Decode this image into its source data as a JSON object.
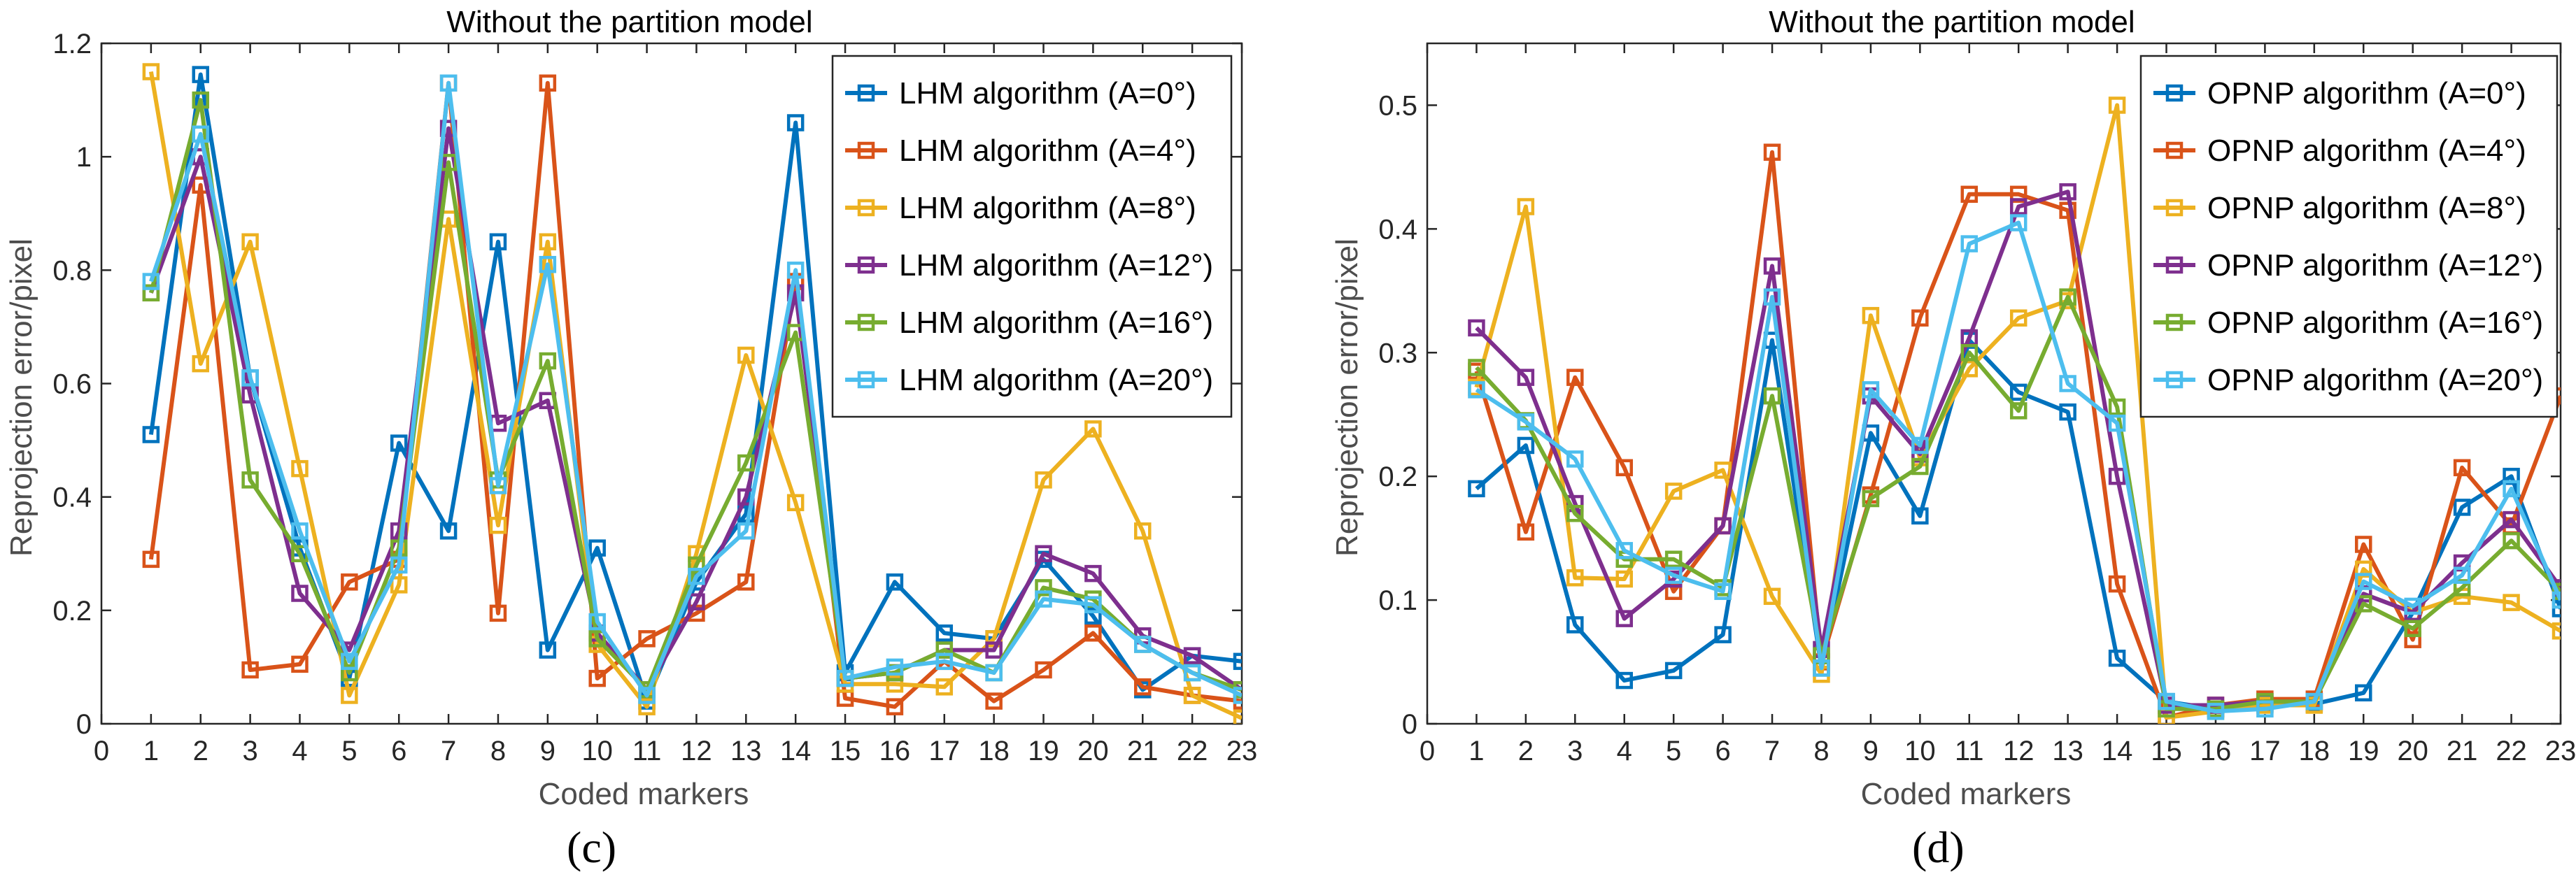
{
  "chart_data": [
    {
      "type": "line",
      "panel_label": "(c)",
      "title": "Without the partition model",
      "xlabel": "Coded markers",
      "ylabel": "Reprojection error/pixel",
      "xlim": [
        0,
        23
      ],
      "ylim": [
        0,
        1.2
      ],
      "xticks": [
        "0",
        "1",
        "2",
        "3",
        "4",
        "5",
        "6",
        "7",
        "8",
        "9",
        "10",
        "11",
        "12",
        "13",
        "14",
        "15",
        "16",
        "17",
        "18",
        "19",
        "20",
        "21",
        "22",
        "23"
      ],
      "yticks": [
        "0",
        "0.2",
        "0.4",
        "0.6",
        "0.8",
        "1",
        "1.2"
      ],
      "ytick_values": [
        0,
        0.2,
        0.4,
        0.6,
        0.8,
        1.0,
        1.2
      ],
      "legend_position": "top-right",
      "marker": "square",
      "x": [
        1,
        2,
        3,
        4,
        5,
        6,
        7,
        8,
        9,
        10,
        11,
        12,
        13,
        14,
        15,
        16,
        17,
        18,
        19,
        20,
        21,
        22,
        23
      ],
      "series": [
        {
          "name": "LHM algorithm (A=0°)",
          "color": "#0072BD",
          "values": [
            0.51,
            1.145,
            0.61,
            0.31,
            0.08,
            0.495,
            0.34,
            0.85,
            0.13,
            0.31,
            0.04,
            0.25,
            0.37,
            1.06,
            0.09,
            0.25,
            0.16,
            0.15,
            0.29,
            0.19,
            0.06,
            0.12,
            0.11
          ]
        },
        {
          "name": "LHM algorithm (A=4°)",
          "color": "#D95319",
          "values": [
            0.29,
            0.95,
            0.095,
            0.105,
            0.25,
            0.29,
            1.13,
            0.195,
            1.13,
            0.08,
            0.15,
            0.195,
            0.25,
            0.78,
            0.045,
            0.03,
            0.11,
            0.04,
            0.095,
            0.16,
            0.065,
            0.05,
            0.04
          ]
        },
        {
          "name": "LHM algorithm (A=8°)",
          "color": "#EDB120",
          "values": [
            1.15,
            0.635,
            0.85,
            0.45,
            0.05,
            0.245,
            0.89,
            0.35,
            0.85,
            0.14,
            0.03,
            0.3,
            0.65,
            0.39,
            0.07,
            0.07,
            0.065,
            0.15,
            0.43,
            0.52,
            0.34,
            0.05,
            0.01
          ]
        },
        {
          "name": "LHM algorithm (A=12°)",
          "color": "#7E2F8E",
          "values": [
            0.76,
            1.0,
            0.58,
            0.23,
            0.13,
            0.34,
            1.05,
            0.53,
            0.57,
            0.16,
            0.06,
            0.215,
            0.4,
            0.76,
            0.08,
            0.09,
            0.13,
            0.13,
            0.3,
            0.265,
            0.155,
            0.12,
            0.06
          ]
        },
        {
          "name": "LHM algorithm (A=16°)",
          "color": "#77AC30",
          "values": [
            0.76,
            1.1,
            0.43,
            0.3,
            0.09,
            0.31,
            0.99,
            0.43,
            0.64,
            0.15,
            0.06,
            0.28,
            0.46,
            0.69,
            0.08,
            0.09,
            0.13,
            0.09,
            0.24,
            0.22,
            0.14,
            0.09,
            0.06
          ]
        },
        {
          "name": "LHM algorithm (A=20°)",
          "color": "#4DBEEE",
          "values": [
            0.78,
            1.04,
            0.61,
            0.34,
            0.11,
            0.28,
            1.13,
            0.42,
            0.81,
            0.18,
            0.05,
            0.26,
            0.34,
            0.8,
            0.08,
            0.1,
            0.11,
            0.09,
            0.22,
            0.21,
            0.14,
            0.09,
            0.05
          ]
        }
      ]
    },
    {
      "type": "line",
      "panel_label": "(d)",
      "title": "Without the partition model",
      "xlabel": "Coded markers",
      "ylabel": "Reprojection error/pixel",
      "xlim": [
        0,
        23
      ],
      "ylim": [
        0,
        0.55
      ],
      "xticks": [
        "0",
        "1",
        "2",
        "3",
        "4",
        "5",
        "6",
        "7",
        "8",
        "9",
        "10",
        "11",
        "12",
        "13",
        "14",
        "15",
        "16",
        "17",
        "18",
        "19",
        "20",
        "21",
        "22",
        "23"
      ],
      "yticks": [
        "0",
        "0.1",
        "0.2",
        "0.3",
        "0.4",
        "0.5"
      ],
      "ytick_values": [
        0,
        0.1,
        0.2,
        0.3,
        0.4,
        0.5
      ],
      "legend_position": "top-right",
      "marker": "square",
      "x": [
        1,
        2,
        3,
        4,
        5,
        6,
        7,
        8,
        9,
        10,
        11,
        12,
        13,
        14,
        15,
        16,
        17,
        18,
        19,
        20,
        21,
        22,
        23
      ],
      "series": [
        {
          "name": "OPNP algorithm (A=0°)",
          "color": "#0072BD",
          "values": [
            0.19,
            0.225,
            0.08,
            0.035,
            0.043,
            0.072,
            0.31,
            0.045,
            0.235,
            0.168,
            0.31,
            0.268,
            0.252,
            0.053,
            0.018,
            0.012,
            0.016,
            0.016,
            0.025,
            0.09,
            0.175,
            0.2,
            0.093
          ]
        },
        {
          "name": "OPNP algorithm (A=4°)",
          "color": "#D95319",
          "values": [
            0.285,
            0.155,
            0.28,
            0.207,
            0.107,
            0.16,
            0.462,
            0.05,
            0.185,
            0.328,
            0.428,
            0.428,
            0.415,
            0.113,
            0.005,
            0.015,
            0.02,
            0.02,
            0.145,
            0.068,
            0.207,
            0.16,
            0.265
          ]
        },
        {
          "name": "OPNP algorithm (A=8°)",
          "color": "#EDB120",
          "values": [
            0.272,
            0.418,
            0.118,
            0.117,
            0.188,
            0.205,
            0.103,
            0.04,
            0.33,
            0.215,
            0.287,
            0.328,
            0.342,
            0.5,
            0.005,
            0.01,
            0.015,
            0.015,
            0.125,
            0.09,
            0.103,
            0.098,
            0.075
          ]
        },
        {
          "name": "OPNP algorithm (A=12°)",
          "color": "#7E2F8E",
          "values": [
            0.32,
            0.28,
            0.178,
            0.085,
            0.117,
            0.16,
            0.37,
            0.06,
            0.265,
            0.218,
            0.312,
            0.418,
            0.43,
            0.2,
            0.015,
            0.015,
            0.018,
            0.018,
            0.105,
            0.09,
            0.13,
            0.165,
            0.11
          ]
        },
        {
          "name": "OPNP algorithm (A=16°)",
          "color": "#77AC30",
          "values": [
            0.288,
            0.245,
            0.17,
            0.133,
            0.133,
            0.11,
            0.265,
            0.055,
            0.182,
            0.208,
            0.3,
            0.253,
            0.345,
            0.256,
            0.012,
            0.012,
            0.018,
            0.018,
            0.097,
            0.077,
            0.11,
            0.148,
            0.107
          ]
        },
        {
          "name": "OPNP algorithm (A=20°)",
          "color": "#4DBEEE",
          "values": [
            0.27,
            0.244,
            0.214,
            0.14,
            0.12,
            0.107,
            0.345,
            0.045,
            0.27,
            0.225,
            0.388,
            0.405,
            0.275,
            0.243,
            0.018,
            0.01,
            0.012,
            0.018,
            0.115,
            0.095,
            0.12,
            0.19,
            0.1
          ]
        }
      ]
    }
  ]
}
